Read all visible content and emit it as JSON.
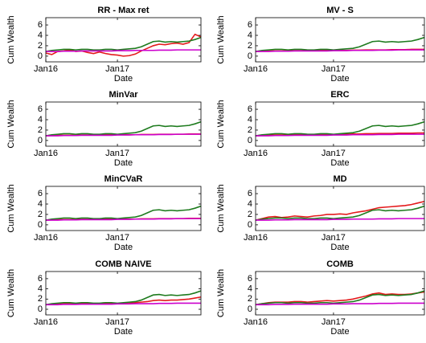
{
  "chart_data": [
    {
      "type": "line",
      "title": "RR - Max ret",
      "xlabel": "Date",
      "ylabel": "Cum Wealth",
      "x": [
        "Jan16",
        "Feb16",
        "Mar16",
        "Apr16",
        "May16",
        "Jun16",
        "Jul16",
        "Aug16",
        "Sep16",
        "Oct16",
        "Nov16",
        "Dec16",
        "Jan17",
        "Feb17",
        "Mar17",
        "Apr17",
        "May17",
        "Jun17",
        "Jul17",
        "Aug17",
        "Sep17",
        "Oct17",
        "Nov17",
        "Dec17",
        "Jan18",
        "Feb18",
        "Mar18"
      ],
      "xticks": [
        "Jan16",
        "Jan17"
      ],
      "ylim": [
        -1.1,
        7.4
      ],
      "yticks": [
        0,
        2,
        4,
        6
      ],
      "series": [
        {
          "color": "#e41a1c",
          "values": [
            0.6,
            0.3,
            0.9,
            1.0,
            1.2,
            0.9,
            1.0,
            0.7,
            0.5,
            0.8,
            0.5,
            0.3,
            0.2,
            0.0,
            0.1,
            0.4,
            1.0,
            1.5,
            2.0,
            2.3,
            2.2,
            2.4,
            2.5,
            2.3,
            2.6,
            4.2,
            3.7
          ]
        },
        {
          "color": "#1e7b1e",
          "values": [
            0.9,
            1.1,
            1.2,
            1.3,
            1.3,
            1.2,
            1.3,
            1.3,
            1.2,
            1.2,
            1.3,
            1.3,
            1.2,
            1.3,
            1.4,
            1.5,
            1.8,
            2.3,
            2.8,
            2.9,
            2.7,
            2.8,
            2.7,
            2.8,
            2.9,
            3.2,
            3.6
          ]
        },
        {
          "color": "#cc00cc",
          "values": [
            0.9,
            0.9,
            0.9,
            0.95,
            0.95,
            0.95,
            1,
            1,
            1,
            1,
            1,
            1,
            1.05,
            1.05,
            1.05,
            1.1,
            1.1,
            1.1,
            1.1,
            1.15,
            1.15,
            1.15,
            1.2,
            1.2,
            1.2,
            1.2,
            1.2
          ]
        }
      ]
    },
    {
      "type": "line",
      "title": "MV - S",
      "xlabel": "Date",
      "ylabel": "Cum Wealth",
      "x": [
        "Jan16",
        "Feb16",
        "Mar16",
        "Apr16",
        "May16",
        "Jun16",
        "Jul16",
        "Aug16",
        "Sep16",
        "Oct16",
        "Nov16",
        "Dec16",
        "Jan17",
        "Feb17",
        "Mar17",
        "Apr17",
        "May17",
        "Jun17",
        "Jul17",
        "Aug17",
        "Sep17",
        "Oct17",
        "Nov17",
        "Dec17",
        "Jan18",
        "Feb18",
        "Mar18"
      ],
      "xticks": [
        "Jan16",
        "Jan17"
      ],
      "ylim": [
        -1.1,
        7.4
      ],
      "yticks": [
        0,
        2,
        4,
        6
      ],
      "series": [
        {
          "color": "#e41a1c",
          "values": [
            0.9,
            0.95,
            1,
            1,
            1,
            1,
            1.05,
            1.05,
            1.05,
            1.05,
            1.1,
            1.1,
            1.1,
            1.1,
            1.1,
            1.15,
            1.15,
            1.2,
            1.2,
            1.2,
            1.2,
            1.25,
            1.25,
            1.25,
            1.3,
            1.3,
            1.3
          ]
        },
        {
          "color": "#1e7b1e",
          "values": [
            0.9,
            1.1,
            1.2,
            1.3,
            1.3,
            1.2,
            1.3,
            1.3,
            1.2,
            1.2,
            1.3,
            1.3,
            1.2,
            1.3,
            1.4,
            1.5,
            1.8,
            2.3,
            2.8,
            2.9,
            2.7,
            2.8,
            2.7,
            2.8,
            2.9,
            3.2,
            3.6
          ]
        },
        {
          "color": "#cc00cc",
          "values": [
            0.9,
            0.9,
            0.9,
            0.95,
            0.95,
            0.95,
            1,
            1,
            1,
            1,
            1,
            1,
            1.05,
            1.05,
            1.05,
            1.1,
            1.1,
            1.1,
            1.1,
            1.15,
            1.15,
            1.15,
            1.2,
            1.2,
            1.2,
            1.2,
            1.2
          ]
        }
      ]
    },
    {
      "type": "line",
      "title": "MinVar",
      "xlabel": "Date",
      "ylabel": "Cum Wealth",
      "x": [
        "Jan16",
        "Feb16",
        "Mar16",
        "Apr16",
        "May16",
        "Jun16",
        "Jul16",
        "Aug16",
        "Sep16",
        "Oct16",
        "Nov16",
        "Dec16",
        "Jan17",
        "Feb17",
        "Mar17",
        "Apr17",
        "May17",
        "Jun17",
        "Jul17",
        "Aug17",
        "Sep17",
        "Oct17",
        "Nov17",
        "Dec17",
        "Jan18",
        "Feb18",
        "Mar18"
      ],
      "xticks": [
        "Jan16",
        "Jan17"
      ],
      "ylim": [
        -1.1,
        7.4
      ],
      "yticks": [
        0,
        2,
        4,
        6
      ],
      "series": [
        {
          "color": "#e41a1c",
          "values": [
            0.9,
            0.95,
            1,
            1,
            1,
            1,
            1.05,
            1.05,
            1.05,
            1.05,
            1.1,
            1.1,
            1.1,
            1.1,
            1.1,
            1.1,
            1.15,
            1.15,
            1.15,
            1.2,
            1.2,
            1.2,
            1.2,
            1.2,
            1.25,
            1.25,
            1.25
          ]
        },
        {
          "color": "#1e7b1e",
          "values": [
            0.9,
            1.1,
            1.2,
            1.3,
            1.3,
            1.2,
            1.3,
            1.3,
            1.2,
            1.2,
            1.3,
            1.3,
            1.2,
            1.3,
            1.4,
            1.5,
            1.8,
            2.3,
            2.8,
            2.9,
            2.7,
            2.8,
            2.7,
            2.8,
            2.9,
            3.2,
            3.6
          ]
        },
        {
          "color": "#cc00cc",
          "values": [
            0.9,
            0.9,
            0.9,
            0.95,
            0.95,
            0.95,
            1,
            1,
            1,
            1,
            1,
            1,
            1.05,
            1.05,
            1.05,
            1.1,
            1.1,
            1.1,
            1.1,
            1.15,
            1.15,
            1.15,
            1.2,
            1.2,
            1.2,
            1.2,
            1.2
          ]
        }
      ]
    },
    {
      "type": "line",
      "title": "ERC",
      "xlabel": "Date",
      "ylabel": "Cum Wealth",
      "x": [
        "Jan16",
        "Feb16",
        "Mar16",
        "Apr16",
        "May16",
        "Jun16",
        "Jul16",
        "Aug16",
        "Sep16",
        "Oct16",
        "Nov16",
        "Dec16",
        "Jan17",
        "Feb17",
        "Mar17",
        "Apr17",
        "May17",
        "Jun17",
        "Jul17",
        "Aug17",
        "Sep17",
        "Oct17",
        "Nov17",
        "Dec17",
        "Jan18",
        "Feb18",
        "Mar18"
      ],
      "xticks": [
        "Jan16",
        "Jan17"
      ],
      "ylim": [
        -1.1,
        7.4
      ],
      "yticks": [
        0,
        2,
        4,
        6
      ],
      "series": [
        {
          "color": "#e41a1c",
          "values": [
            0.9,
            0.95,
            1,
            1.05,
            1.05,
            1.05,
            1.1,
            1.1,
            1.1,
            1.1,
            1.15,
            1.15,
            1.15,
            1.2,
            1.2,
            1.25,
            1.25,
            1.3,
            1.3,
            1.35,
            1.35,
            1.35,
            1.4,
            1.4,
            1.4,
            1.45,
            1.45
          ]
        },
        {
          "color": "#1e7b1e",
          "values": [
            0.9,
            1.1,
            1.2,
            1.3,
            1.3,
            1.2,
            1.3,
            1.3,
            1.2,
            1.2,
            1.3,
            1.3,
            1.2,
            1.3,
            1.4,
            1.5,
            1.8,
            2.3,
            2.8,
            2.9,
            2.7,
            2.8,
            2.7,
            2.8,
            2.9,
            3.2,
            3.6
          ]
        },
        {
          "color": "#cc00cc",
          "values": [
            0.9,
            0.9,
            0.9,
            0.95,
            0.95,
            0.95,
            1,
            1,
            1,
            1,
            1,
            1,
            1.05,
            1.05,
            1.05,
            1.1,
            1.1,
            1.1,
            1.1,
            1.15,
            1.15,
            1.15,
            1.2,
            1.2,
            1.2,
            1.2,
            1.2
          ]
        }
      ]
    },
    {
      "type": "line",
      "title": "MinCVaR",
      "xlabel": "Date",
      "ylabel": "Cum Wealth",
      "x": [
        "Jan16",
        "Feb16",
        "Mar16",
        "Apr16",
        "May16",
        "Jun16",
        "Jul16",
        "Aug16",
        "Sep16",
        "Oct16",
        "Nov16",
        "Dec16",
        "Jan17",
        "Feb17",
        "Mar17",
        "Apr17",
        "May17",
        "Jun17",
        "Jul17",
        "Aug17",
        "Sep17",
        "Oct17",
        "Nov17",
        "Dec17",
        "Jan18",
        "Feb18",
        "Mar18"
      ],
      "xticks": [
        "Jan16",
        "Jan17"
      ],
      "ylim": [
        -1.1,
        7.4
      ],
      "yticks": [
        0,
        2,
        4,
        6
      ],
      "series": [
        {
          "color": "#e41a1c",
          "values": [
            0.9,
            0.95,
            1,
            1,
            1,
            1,
            1.05,
            1.05,
            1.05,
            1.05,
            1.1,
            1.1,
            1.1,
            1.1,
            1.1,
            1.1,
            1.15,
            1.15,
            1.15,
            1.2,
            1.2,
            1.2,
            1.2,
            1.2,
            1.25,
            1.25,
            1.25
          ]
        },
        {
          "color": "#1e7b1e",
          "values": [
            0.9,
            1.1,
            1.2,
            1.3,
            1.3,
            1.2,
            1.3,
            1.3,
            1.2,
            1.2,
            1.3,
            1.3,
            1.2,
            1.3,
            1.4,
            1.5,
            1.8,
            2.3,
            2.8,
            2.9,
            2.7,
            2.8,
            2.7,
            2.8,
            2.9,
            3.2,
            3.6
          ]
        },
        {
          "color": "#cc00cc",
          "values": [
            0.9,
            0.9,
            0.9,
            0.95,
            0.95,
            0.95,
            1,
            1,
            1,
            1,
            1,
            1,
            1.05,
            1.05,
            1.05,
            1.1,
            1.1,
            1.1,
            1.1,
            1.15,
            1.15,
            1.15,
            1.2,
            1.2,
            1.2,
            1.2,
            1.2
          ]
        }
      ]
    },
    {
      "type": "line",
      "title": "MD",
      "xlabel": "Date",
      "ylabel": "Cum Wealth",
      "x": [
        "Jan16",
        "Feb16",
        "Mar16",
        "Apr16",
        "May16",
        "Jun16",
        "Jul16",
        "Aug16",
        "Sep16",
        "Oct16",
        "Nov16",
        "Dec16",
        "Jan17",
        "Feb17",
        "Mar17",
        "Apr17",
        "May17",
        "Jun17",
        "Jul17",
        "Aug17",
        "Sep17",
        "Oct17",
        "Nov17",
        "Dec17",
        "Jan18",
        "Feb18",
        "Mar18"
      ],
      "xticks": [
        "Jan16",
        "Jan17"
      ],
      "ylim": [
        -1.1,
        7.4
      ],
      "yticks": [
        0,
        2,
        4,
        6
      ],
      "series": [
        {
          "color": "#e41a1c",
          "values": [
            0.9,
            1.2,
            1.5,
            1.6,
            1.4,
            1.5,
            1.7,
            1.6,
            1.5,
            1.7,
            1.8,
            2.0,
            2.0,
            2.1,
            2.0,
            2.3,
            2.5,
            2.7,
            3.0,
            3.3,
            3.4,
            3.5,
            3.6,
            3.7,
            3.9,
            4.2,
            4.5
          ]
        },
        {
          "color": "#1e7b1e",
          "values": [
            0.9,
            1.1,
            1.2,
            1.3,
            1.3,
            1.2,
            1.3,
            1.3,
            1.2,
            1.2,
            1.3,
            1.3,
            1.2,
            1.3,
            1.4,
            1.5,
            1.8,
            2.3,
            2.8,
            2.9,
            2.7,
            2.8,
            2.7,
            2.8,
            2.9,
            3.2,
            3.6
          ]
        },
        {
          "color": "#cc00cc",
          "values": [
            0.9,
            0.9,
            0.9,
            0.95,
            0.95,
            0.95,
            1,
            1,
            1,
            1,
            1,
            1,
            1.05,
            1.05,
            1.05,
            1.1,
            1.1,
            1.1,
            1.1,
            1.15,
            1.15,
            1.15,
            1.2,
            1.2,
            1.2,
            1.2,
            1.2
          ]
        }
      ]
    },
    {
      "type": "line",
      "title": "COMB NAIVE",
      "xlabel": "Date",
      "ylabel": "Cum Wealth",
      "x": [
        "Jan16",
        "Feb16",
        "Mar16",
        "Apr16",
        "May16",
        "Jun16",
        "Jul16",
        "Aug16",
        "Sep16",
        "Oct16",
        "Nov16",
        "Dec16",
        "Jan17",
        "Feb17",
        "Mar17",
        "Apr17",
        "May17",
        "Jun17",
        "Jul17",
        "Aug17",
        "Sep17",
        "Oct17",
        "Nov17",
        "Dec17",
        "Jan18",
        "Feb18",
        "Mar18"
      ],
      "xticks": [
        "Jan16",
        "Jan17"
      ],
      "ylim": [
        -1.1,
        7.4
      ],
      "yticks": [
        0,
        2,
        4,
        6
      ],
      "series": [
        {
          "color": "#e41a1c",
          "values": [
            0.9,
            1.0,
            1.1,
            1.2,
            1.2,
            1.1,
            1.2,
            1.2,
            1.1,
            1.1,
            1.2,
            1.2,
            1.1,
            1.2,
            1.2,
            1.3,
            1.4,
            1.5,
            1.7,
            1.8,
            1.7,
            1.8,
            1.8,
            1.9,
            2.0,
            2.2,
            2.4
          ]
        },
        {
          "color": "#1e7b1e",
          "values": [
            0.9,
            1.1,
            1.2,
            1.3,
            1.3,
            1.2,
            1.3,
            1.3,
            1.2,
            1.2,
            1.3,
            1.3,
            1.2,
            1.3,
            1.4,
            1.5,
            1.8,
            2.3,
            2.8,
            2.9,
            2.7,
            2.8,
            2.7,
            2.8,
            2.9,
            3.2,
            3.6
          ]
        },
        {
          "color": "#cc00cc",
          "values": [
            0.9,
            0.9,
            0.9,
            0.95,
            0.95,
            0.95,
            1,
            1,
            1,
            1,
            1,
            1,
            1.05,
            1.05,
            1.05,
            1.1,
            1.1,
            1.1,
            1.1,
            1.15,
            1.15,
            1.15,
            1.2,
            1.2,
            1.2,
            1.2,
            1.2
          ]
        }
      ]
    },
    {
      "type": "line",
      "title": "COMB",
      "xlabel": "Date",
      "ylabel": "Cum Wealth",
      "x": [
        "Jan16",
        "Feb16",
        "Mar16",
        "Apr16",
        "May16",
        "Jun16",
        "Jul16",
        "Aug16",
        "Sep16",
        "Oct16",
        "Nov16",
        "Dec16",
        "Jan17",
        "Feb17",
        "Mar17",
        "Apr17",
        "May17",
        "Jun17",
        "Jul17",
        "Aug17",
        "Sep17",
        "Oct17",
        "Nov17",
        "Dec17",
        "Jan18",
        "Feb18",
        "Mar18"
      ],
      "xticks": [
        "Jan16",
        "Jan17"
      ],
      "ylim": [
        -1.1,
        7.4
      ],
      "yticks": [
        0,
        2,
        4,
        6
      ],
      "series": [
        {
          "color": "#e41a1c",
          "values": [
            0.9,
            1.1,
            1.3,
            1.4,
            1.4,
            1.4,
            1.5,
            1.5,
            1.4,
            1.5,
            1.6,
            1.7,
            1.6,
            1.7,
            1.8,
            2.0,
            2.3,
            2.6,
            3.0,
            3.2,
            2.9,
            3.0,
            2.9,
            2.9,
            3.0,
            3.2,
            3.4
          ]
        },
        {
          "color": "#1e7b1e",
          "values": [
            0.9,
            1.1,
            1.2,
            1.3,
            1.3,
            1.2,
            1.3,
            1.3,
            1.2,
            1.2,
            1.3,
            1.3,
            1.2,
            1.3,
            1.4,
            1.5,
            1.8,
            2.3,
            2.8,
            2.9,
            2.7,
            2.8,
            2.7,
            2.8,
            2.9,
            3.2,
            3.6
          ]
        },
        {
          "color": "#cc00cc",
          "values": [
            0.9,
            0.9,
            0.9,
            0.95,
            0.95,
            0.95,
            1,
            1,
            1,
            1,
            1,
            1,
            1.05,
            1.05,
            1.05,
            1.1,
            1.1,
            1.1,
            1.1,
            1.15,
            1.15,
            1.15,
            1.2,
            1.2,
            1.2,
            1.2,
            1.2
          ]
        }
      ]
    }
  ]
}
